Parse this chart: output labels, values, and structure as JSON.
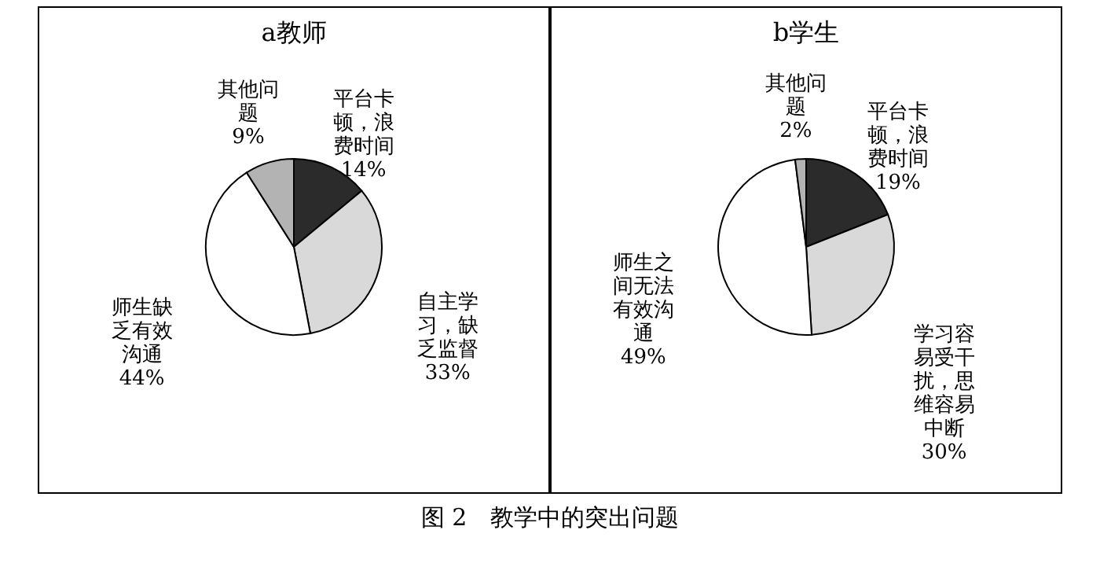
{
  "chart_data": [
    {
      "type": "pie",
      "title": "a教师",
      "categories": [
        "平台卡顿，浪费时间",
        "自主学习，缺乏监督",
        "师生缺乏有效沟通",
        "其他问题"
      ],
      "values": [
        14,
        33,
        44,
        9
      ],
      "value_labels": [
        "14%",
        "33%",
        "44%",
        "9%"
      ],
      "colors": [
        "#2b2b2b",
        "#d9d9d9",
        "#ffffff",
        "#b3b3b3"
      ],
      "annotations": [
        "图 2　教学中的突出问题"
      ]
    },
    {
      "type": "pie",
      "title": "b学生",
      "categories": [
        "平台卡顿，浪费时间",
        "学习容易受干扰，思维容易中断",
        "师生之间无法有效沟通",
        "其他问题"
      ],
      "values": [
        19,
        30,
        49,
        2
      ],
      "value_labels": [
        "19%",
        "30%",
        "49%",
        "2%"
      ],
      "colors": [
        "#2b2b2b",
        "#d9d9d9",
        "#ffffff",
        "#b3b3b3"
      ]
    }
  ]
}
